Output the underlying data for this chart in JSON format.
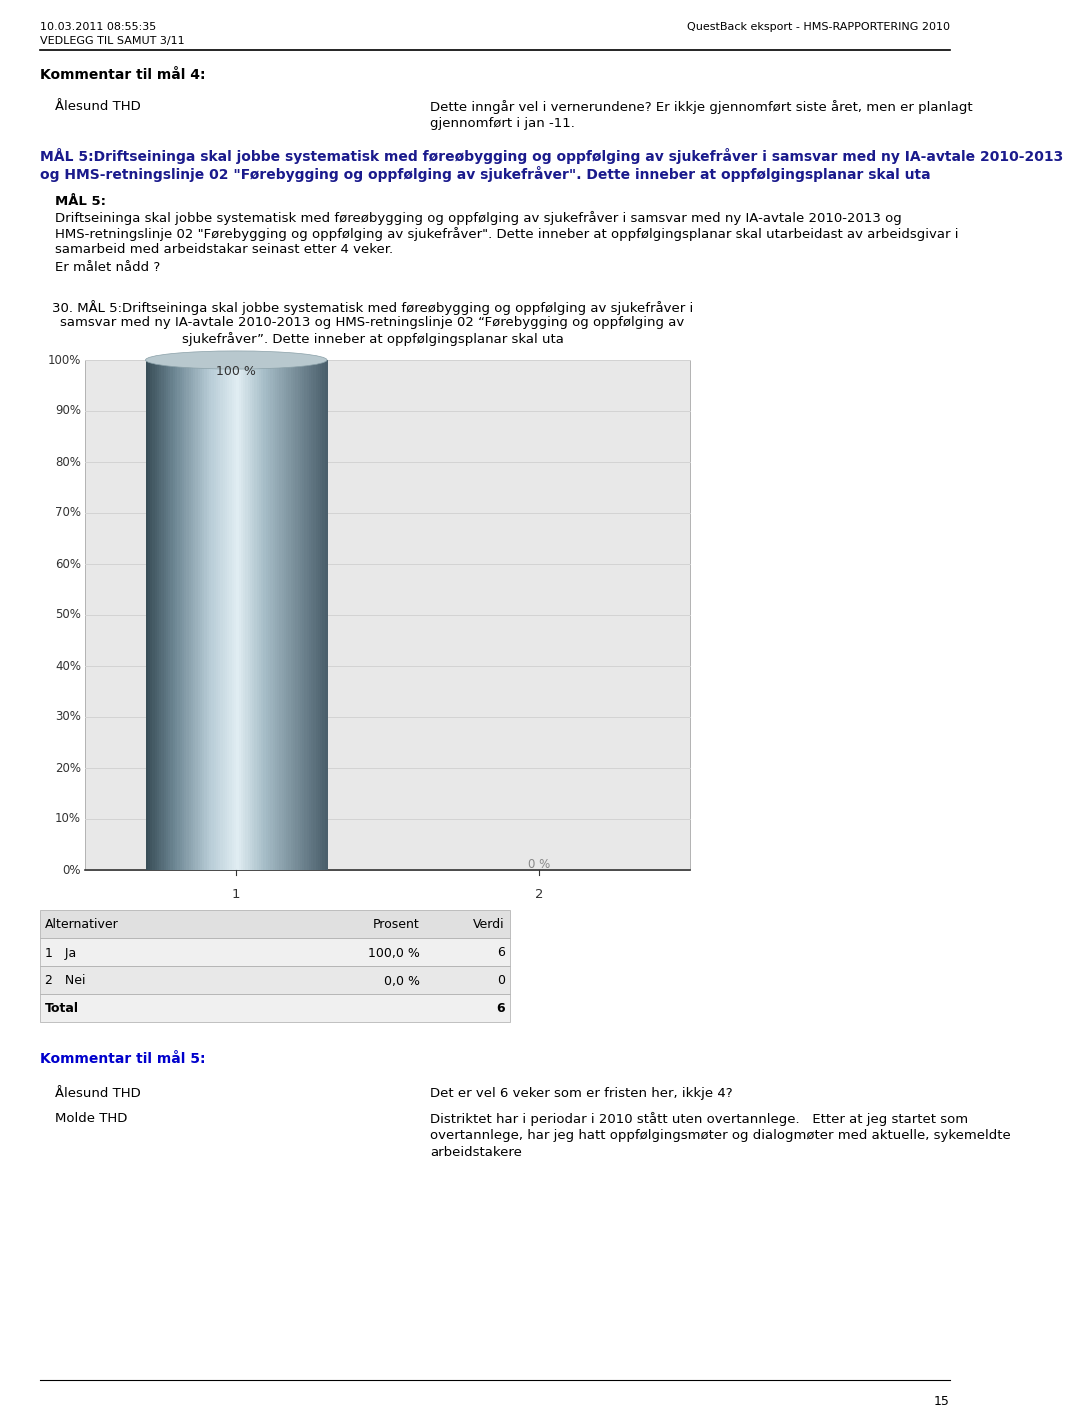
{
  "header_left_line1": "10.03.2011 08:55:35",
  "header_left_line2": "VEDLEGG TIL SAMUT 3/11",
  "header_right": "QuestBack eksport - HMS-RAPPORTERING 2010",
  "section_title": "Kommentar til mål 4:",
  "alesund_label": "Ålesund THD",
  "alesund_text1": "Dette inngår vel i vernerundene? Er ikkje gjennomført siste året, men er planlagt",
  "alesund_text2": "gjennomført i jan -11.",
  "mal_bold_line1": "MÅL 5:Driftseininga skal jobbe systematisk med føreøbygging og oppfølging av sjukefråver i samsvar med ny IA-avtale 2010-2013",
  "mal_bold_line2": "og HMS-retningslinje 02 \"Førebygging og oppfølging av sjukefråver\". Dette inneber at oppfølgingsplanar skal uta",
  "mal5_header": "MÅL 5:",
  "mal5_body_line1": "Driftseininga skal jobbe systematisk med føreøbygging og oppfølging av sjukefråver i samsvar med ny IA-avtale 2010-2013 og",
  "mal5_body_line2": "HMS-retningslinje 02 \"Førebygging og oppfølging av sjukefråver\". Dette inneber at oppfølgingsplanar skal utarbeidast av arbeidsgivar i",
  "mal5_body_line3": "samarbeid med arbeidstakar seinast etter 4 veker.",
  "mal5_question": "Er målet nådd ?",
  "chart_title_line1": "30. MÅL 5:Driftseininga skal jobbe systematisk med føreøbygging og oppfølging av sjukefråver i",
  "chart_title_line2": "samsvar med ny IA-avtale 2010-2013 og HMS-retningslinje 02 “Førebygging og oppfølging av",
  "chart_title_line3": "sjukefråver”. Dette inneber at oppfølgingsplanar skal uta",
  "bar_categories": [
    "1",
    "2"
  ],
  "bar_values": [
    100,
    0
  ],
  "bar_label1": "100 %",
  "bar_label2": "0 %",
  "chart_bg": "#e8e8e8",
  "ytick_labels": [
    "0%",
    "10%",
    "20%",
    "30%",
    "40%",
    "50%",
    "60%",
    "70%",
    "80%",
    "90%",
    "100%"
  ],
  "ytick_values": [
    0,
    10,
    20,
    30,
    40,
    50,
    60,
    70,
    80,
    90,
    100
  ],
  "table_headers": [
    "Alternativer",
    "Prosent",
    "Verdi"
  ],
  "table_rows": [
    [
      "1   Ja",
      "100,0 %",
      "6"
    ],
    [
      "2   Nei",
      "0,0 %",
      "0"
    ],
    [
      "Total",
      "",
      "6"
    ]
  ],
  "comment_title": "Kommentar til mål 5:",
  "comment_col1": [
    "Ålesund THD",
    "Molde THD"
  ],
  "comment_col2_line1": [
    "Det er vel 6 veker som er fristen her, ikkje 4?",
    "Distriktet har i periodar i 2010 stått uten overtannlege.   Etter at jeg startet som"
  ],
  "comment_col2_line2": [
    "",
    "overtannlege, har jeg hatt oppfølgingsmøter og dialogmøter med aktuelle, sykemeldte"
  ],
  "comment_col2_line3": [
    "",
    "arbeidstakere"
  ],
  "page_number": "15",
  "bg_color": "#ffffff",
  "text_color": "#000000",
  "grid_color": "#d3d3d3",
  "table_border_color": "#aaaaaa"
}
